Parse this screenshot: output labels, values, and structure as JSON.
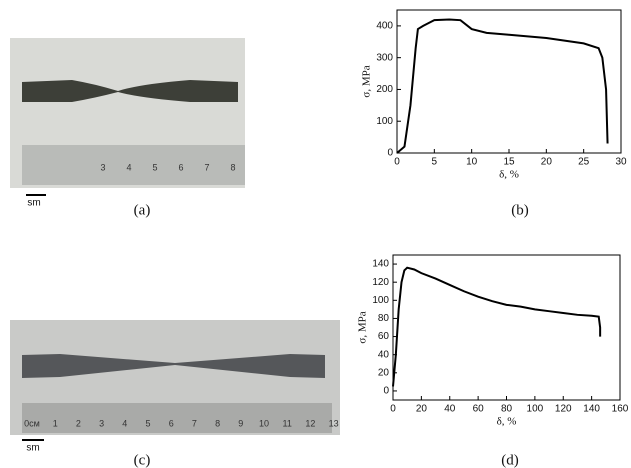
{
  "chart_data": [
    {
      "type": "line",
      "x_label": "δ, %",
      "y_label": "σ, MPa",
      "x": [
        0,
        1,
        1.8,
        2.5,
        2.8,
        3.5,
        5,
        7,
        8.5,
        10,
        12,
        15,
        20,
        25,
        27,
        27.5,
        28,
        28.2
      ],
      "series": [
        {
          "color": "#000000",
          "values": [
            0,
            20,
            150,
            330,
            390,
            400,
            418,
            420,
            418,
            390,
            378,
            372,
            362,
            345,
            330,
            300,
            200,
            30
          ]
        }
      ],
      "xlim": [
        0,
        30
      ],
      "xticks": [
        0,
        5,
        10,
        15,
        20,
        25,
        30
      ],
      "ylim": [
        0,
        450
      ],
      "yticks": [
        0,
        100,
        200,
        300,
        400
      ]
    },
    {
      "type": "line",
      "x_label": "δ, %",
      "y_label": "σ, MPa",
      "x": [
        0,
        2,
        4,
        6,
        8,
        10,
        15,
        20,
        30,
        40,
        50,
        60,
        70,
        80,
        90,
        100,
        110,
        120,
        130,
        140,
        145,
        146,
        146
      ],
      "series": [
        {
          "color": "#000000",
          "values": [
            5,
            40,
            90,
            120,
            133,
            136,
            134,
            130,
            124,
            117,
            110,
            104,
            99,
            95,
            93,
            90,
            88,
            86,
            84,
            83,
            82,
            70,
            60
          ]
        }
      ],
      "xlim": [
        0,
        160
      ],
      "xticks": [
        0,
        20,
        40,
        60,
        80,
        100,
        120,
        140,
        160
      ],
      "ylim": [
        -10,
        150
      ],
      "yticks": [
        0,
        20,
        40,
        60,
        80,
        100,
        120,
        140
      ]
    }
  ],
  "panels": {
    "a": "(a)",
    "b": "(b)",
    "c": "(c)",
    "d": "(d)"
  },
  "photos": {
    "scale_a": "sm",
    "scale_c": "sm",
    "ruler_a": [
      "3",
      "4",
      "5",
      "6",
      "7",
      "8"
    ],
    "ruler_c": [
      "0см",
      "1",
      "2",
      "3",
      "4",
      "5",
      "6",
      "7",
      "8",
      "9",
      "10",
      "11",
      "12",
      "13"
    ]
  }
}
